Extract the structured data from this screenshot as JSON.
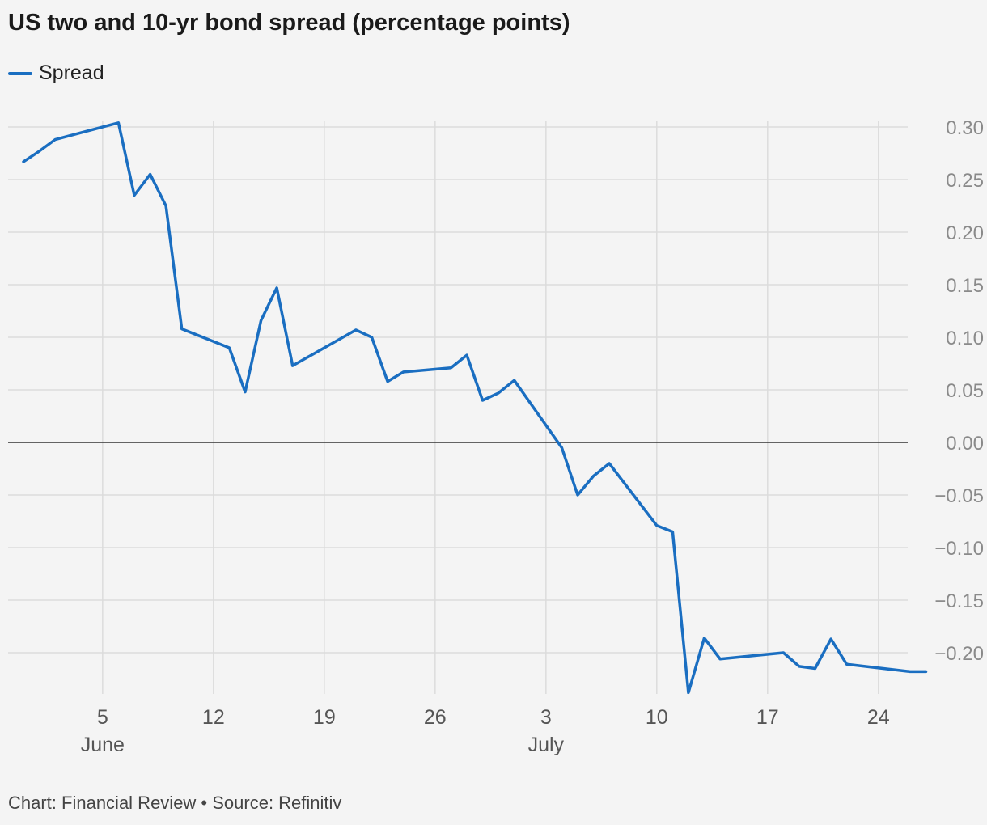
{
  "title": "US two and 10-yr bond spread (percentage points)",
  "source": "Chart: Financial Review • Source: Refinitiv",
  "colors": {
    "series": "#1a6ec1",
    "grid": "#dcdcdc",
    "zero": "#333333"
  },
  "chart_data": {
    "type": "line",
    "title": "US two and 10-yr bond spread (percentage points)",
    "xlabel": "",
    "ylabel": "",
    "y_axis_position": "right",
    "legend_position": "top-left",
    "grid": true,
    "ylim": [
      -0.24,
      0.31
    ],
    "xlim": [
      "2023-05-31",
      "2023-07-27"
    ],
    "y_ticks": [
      {
        "value": 0.3,
        "label": "0.30"
      },
      {
        "value": 0.25,
        "label": "0.25"
      },
      {
        "value": 0.2,
        "label": "0.20"
      },
      {
        "value": 0.15,
        "label": "0.15"
      },
      {
        "value": 0.1,
        "label": "0.10"
      },
      {
        "value": 0.05,
        "label": "0.05"
      },
      {
        "value": 0.0,
        "label": "0.00"
      },
      {
        "value": -0.05,
        "label": "−0.05"
      },
      {
        "value": -0.1,
        "label": "−0.10"
      },
      {
        "value": -0.15,
        "label": "−0.15"
      },
      {
        "value": -0.2,
        "label": "−0.20"
      }
    ],
    "x_ticks": [
      {
        "date": "2023-06-05",
        "label": "5"
      },
      {
        "date": "2023-06-12",
        "label": "12"
      },
      {
        "date": "2023-06-19",
        "label": "19"
      },
      {
        "date": "2023-06-26",
        "label": "26"
      },
      {
        "date": "2023-07-03",
        "label": "3"
      },
      {
        "date": "2023-07-10",
        "label": "10"
      },
      {
        "date": "2023-07-17",
        "label": "17"
      },
      {
        "date": "2023-07-24",
        "label": "24"
      }
    ],
    "month_labels": [
      {
        "date": "2023-06-05",
        "label": "June"
      },
      {
        "date": "2023-07-03",
        "label": "July"
      }
    ],
    "series": [
      {
        "name": "Spread",
        "points": [
          {
            "x": "2023-05-31",
            "y": 0.267
          },
          {
            "x": "2023-06-01",
            "y": 0.277
          },
          {
            "x": "2023-06-02",
            "y": 0.288
          },
          {
            "x": "2023-06-06",
            "y": 0.304
          },
          {
            "x": "2023-06-07",
            "y": 0.235
          },
          {
            "x": "2023-06-08",
            "y": 0.255
          },
          {
            "x": "2023-06-09",
            "y": 0.225
          },
          {
            "x": "2023-06-10",
            "y": 0.108
          },
          {
            "x": "2023-06-13",
            "y": 0.09
          },
          {
            "x": "2023-06-14",
            "y": 0.048
          },
          {
            "x": "2023-06-15",
            "y": 0.116
          },
          {
            "x": "2023-06-16",
            "y": 0.147
          },
          {
            "x": "2023-06-17",
            "y": 0.073
          },
          {
            "x": "2023-06-21",
            "y": 0.107
          },
          {
            "x": "2023-06-22",
            "y": 0.1
          },
          {
            "x": "2023-06-23",
            "y": 0.058
          },
          {
            "x": "2023-06-24",
            "y": 0.067
          },
          {
            "x": "2023-06-27",
            "y": 0.071
          },
          {
            "x": "2023-06-28",
            "y": 0.083
          },
          {
            "x": "2023-06-29",
            "y": 0.04
          },
          {
            "x": "2023-06-30",
            "y": 0.047
          },
          {
            "x": "2023-07-01",
            "y": 0.059
          },
          {
            "x": "2023-07-04",
            "y": -0.005
          },
          {
            "x": "2023-07-05",
            "y": -0.05
          },
          {
            "x": "2023-07-06",
            "y": -0.032
          },
          {
            "x": "2023-07-07",
            "y": -0.02
          },
          {
            "x": "2023-07-10",
            "y": -0.079
          },
          {
            "x": "2023-07-11",
            "y": -0.085
          },
          {
            "x": "2023-07-12",
            "y": -0.238
          },
          {
            "x": "2023-07-13",
            "y": -0.186
          },
          {
            "x": "2023-07-14",
            "y": -0.206
          },
          {
            "x": "2023-07-18",
            "y": -0.2
          },
          {
            "x": "2023-07-19",
            "y": -0.213
          },
          {
            "x": "2023-07-20",
            "y": -0.215
          },
          {
            "x": "2023-07-21",
            "y": -0.187
          },
          {
            "x": "2023-07-22",
            "y": -0.211
          },
          {
            "x": "2023-07-26",
            "y": -0.218
          },
          {
            "x": "2023-07-27",
            "y": -0.218
          }
        ]
      }
    ]
  }
}
